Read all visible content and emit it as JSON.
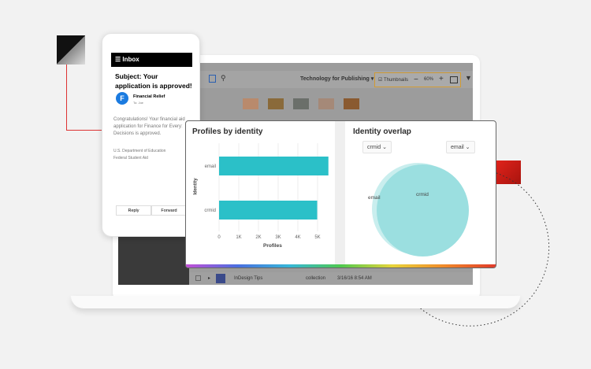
{
  "phone": {
    "header": "Inbox",
    "subject": "Subject: Your application is approved!",
    "sender_initial": "F",
    "sender": "Financial Relief",
    "to": "To: Joe",
    "body": "Congratulations! Your financial aid application for Finance for Every: Decisions is approved.",
    "sig1": "U.S. Department of Education",
    "sig2": "Federal Student Aid",
    "reply": "Reply",
    "forward": "Forward"
  },
  "app": {
    "collection": "Technology for Publishing",
    "thumbnails": "Thumbnails",
    "zoom": "60%",
    "row_name": "InDesign Tips",
    "row_type": "collection",
    "row_date": "3/16/16 8:54 AM"
  },
  "colors": {
    "accent": "#2bc0c8",
    "venn": "#9bdfe0",
    "brand_red": "#e0231b"
  },
  "chart_data": [
    {
      "type": "bar",
      "orientation": "horizontal",
      "title": "Profiles by identity",
      "categories": [
        "email",
        "crmid"
      ],
      "values": [
        5550,
        4980
      ],
      "xlabel": "Profiles",
      "ylabel": "Identity",
      "xlim": [
        0,
        5500
      ],
      "xticks": [
        "0",
        "1K",
        "2K",
        "3K",
        "4K",
        "5K"
      ],
      "grid": true
    },
    {
      "type": "venn",
      "title": "Identity overlap",
      "sets": [
        "email",
        "crmid"
      ],
      "selectors": [
        "crmid",
        "email"
      ]
    }
  ]
}
